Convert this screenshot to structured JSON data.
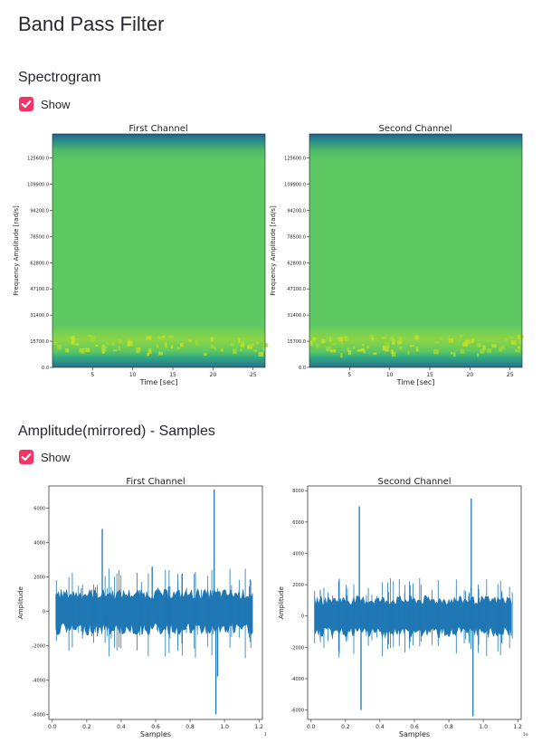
{
  "page": {
    "title": "Band Pass Filter"
  },
  "colors": {
    "accent": "#ff4b4b",
    "checkbox": "#f63366",
    "wave": "#1f77b4"
  },
  "sections": [
    {
      "title": "Spectrogram",
      "checkbox_label": "Show",
      "checked": true
    },
    {
      "title": "Amplitude(mirrored) - Samples",
      "checkbox_label": "Show",
      "checked": true
    }
  ],
  "chart_data": [
    {
      "type": "heatmap",
      "title": "First Channel",
      "xlabel": "Time [sec]",
      "ylabel": "Frequency Amplitude [rad/s]",
      "xticks": [
        "5",
        "10",
        "15",
        "20",
        "25"
      ],
      "xtick_values": [
        5,
        10,
        15,
        20,
        25
      ],
      "yticks": [
        "0.0",
        "15700.0",
        "31400.0",
        "47100.0",
        "62800.0",
        "78500.0",
        "94200.0",
        "109900.0",
        "125600.0"
      ],
      "ytick_values": [
        0,
        15700,
        31400,
        47100,
        62800,
        78500,
        94200,
        109900,
        125600
      ],
      "xlim": [
        0,
        26.5
      ],
      "ylim": [
        0,
        140000
      ]
    },
    {
      "type": "heatmap",
      "title": "Second Channel",
      "xlabel": "Time [sec]",
      "ylabel": "Frequency Amplitude [rad/s]",
      "xticks": [
        "5",
        "10",
        "15",
        "20",
        "25"
      ],
      "xtick_values": [
        5,
        10,
        15,
        20,
        25
      ],
      "yticks": [
        "0.0",
        "15700.0",
        "31400.0",
        "47100.0",
        "62800.0",
        "78500.0",
        "94200.0",
        "109900.0",
        "125600.0"
      ],
      "ytick_values": [
        0,
        15700,
        31400,
        47100,
        62800,
        78500,
        94200,
        109900,
        125600
      ],
      "xlim": [
        0,
        26.5
      ],
      "ylim": [
        0,
        140000
      ]
    },
    {
      "type": "line",
      "title": "First Channel",
      "xlabel": "Samples",
      "ylabel": "Amplitude",
      "xticks": [
        "0.0",
        "0.2",
        "0.4",
        "0.6",
        "0.8",
        "1.0",
        "1.2"
      ],
      "xtick_values": [
        0,
        0.2,
        0.4,
        0.6,
        0.8,
        1.0,
        1.2
      ],
      "x_offset_label": "1e6",
      "yticks": [
        "-6000",
        "-4000",
        "-2000",
        "0",
        "2000",
        "4000",
        "6000"
      ],
      "ytick_values": [
        -6000,
        -4000,
        -2000,
        0,
        2000,
        4000,
        6000
      ],
      "xlim": [
        -0.02,
        1.22
      ],
      "ylim": [
        -6300,
        7300
      ],
      "x": [
        0,
        0.29,
        0.58,
        0.94,
        0.95,
        0.96,
        1.17
      ],
      "y": [
        0,
        4800,
        2600,
        7100,
        -6000,
        -3800,
        0
      ],
      "band": 1000
    },
    {
      "type": "line",
      "title": "Second Channel",
      "xlabel": "Samples",
      "ylabel": "Amplitude",
      "xticks": [
        "0.0",
        "0.2",
        "0.4",
        "0.6",
        "0.8",
        "1.0",
        "1.2"
      ],
      "xtick_values": [
        0,
        0.2,
        0.4,
        0.6,
        0.8,
        1.0,
        1.2
      ],
      "x_offset_label": "1e6",
      "yticks": [
        "-6000",
        "-4000",
        "-2000",
        "0",
        "2000",
        "4000",
        "6000",
        "8000"
      ],
      "ytick_values": [
        -6000,
        -4000,
        -2000,
        0,
        2000,
        4000,
        6000,
        8000
      ],
      "xlim": [
        -0.02,
        1.22
      ],
      "ylim": [
        -6600,
        8300
      ],
      "x": [
        0,
        0.28,
        0.29,
        0.93,
        0.94,
        1.17
      ],
      "y": [
        0,
        7000,
        -6000,
        7500,
        -6400,
        0
      ],
      "band": 1000
    }
  ]
}
